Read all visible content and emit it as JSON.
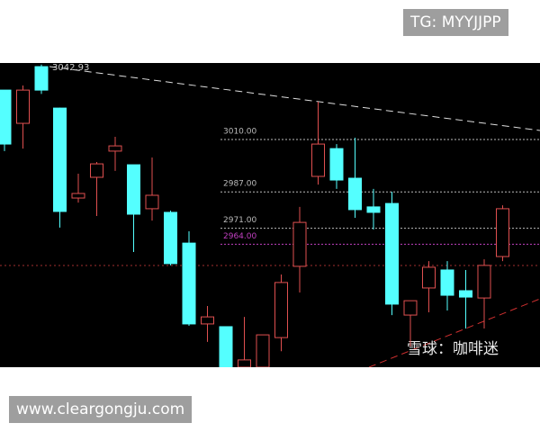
{
  "overlays": {
    "top_right": "TG: MYYJJPP",
    "bottom_left": "www.cleargongju.com",
    "watermark": "雪球：咖啡迷"
  },
  "chart_data": {
    "type": "candlestick",
    "ylim": [
      2910,
      3043.6
    ],
    "up_color": "#e05050",
    "down_color": "#54ffff",
    "open": [
      3031.7,
      3017.1,
      3042.0,
      3023.8,
      2984.3,
      2993.4,
      3004.9,
      2998.9,
      2979.6,
      2978.0,
      2964.5,
      2929.0,
      2927.8,
      2910.0,
      2910.0,
      2923.0,
      2954.3,
      2993.8,
      3006.0,
      2993.0,
      2980.4,
      2981.9,
      2932.9,
      2944.8,
      2952.7,
      2943.6,
      2940.4,
      2958.6
    ],
    "high": [
      3031.7,
      3033.7,
      3042.93,
      3024.0,
      2995.0,
      3000.1,
      3011.2,
      2998.9,
      3002.1,
      2978.8,
      2969.7,
      2936.9,
      2927.8,
      2932.1,
      2924.2,
      2950.7,
      2980.4,
      3026.6,
      3008.0,
      3010.8,
      2988.3,
      2987.1,
      2939.2,
      2956.6,
      2956.6,
      2952.7,
      2957.4,
      2981.1
    ],
    "low": [
      3004.9,
      3006.0,
      3030.0,
      2971.3,
      2982.3,
      2976.4,
      2996.2,
      2960.6,
      2974.4,
      2954.7,
      2928.2,
      2921.1,
      2910.0,
      2910.0,
      2910.0,
      2917.0,
      2942.8,
      2990.2,
      2988.3,
      2975.6,
      2970.5,
      2932.9,
      2919.1,
      2934.1,
      2934.9,
      2927.0,
      2927.0,
      2956.6
    ],
    "close": [
      3008.0,
      3031.7,
      3031.7,
      2978.4,
      2986.3,
      2999.3,
      3007.2,
      2977.2,
      2985.5,
      2955.5,
      2929.0,
      2932.1,
      2910.0,
      2913.2,
      2924.2,
      2947.2,
      2973.6,
      3008.0,
      2992.2,
      2979.2,
      2978.0,
      2937.7,
      2939.2,
      2953.9,
      2941.6,
      2940.8,
      2954.7,
      2979.6
    ],
    "price_lines": [
      {
        "value": 3010,
        "label": "3010.00",
        "color": "#bbbbbb"
      },
      {
        "value": 2987,
        "label": "2987.00",
        "color": "#bbbbbb"
      },
      {
        "value": 2971,
        "label": "2971.00",
        "color": "#bbbbbb"
      },
      {
        "value": 2964,
        "label": "2964.00",
        "color": "#c040c0"
      }
    ],
    "annotations": [
      {
        "value": 3042.93,
        "label": "3042.93"
      }
    ]
  }
}
